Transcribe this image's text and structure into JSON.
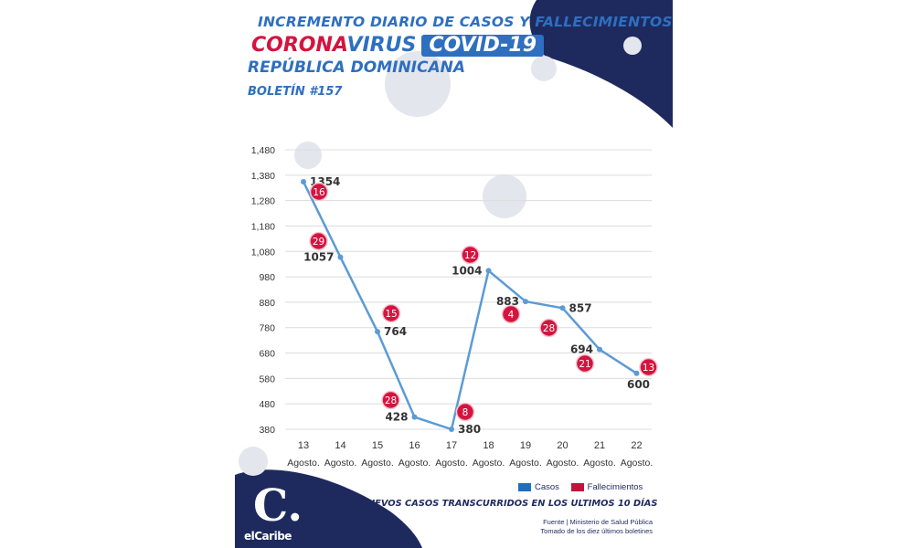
{
  "header": {
    "line1": "INCREMENTO DIARIO DE CASOS Y FALLECIMIENTOS",
    "corona": "CORONA",
    "virus": "VIRUS",
    "covid": "COVID-19",
    "country": "REPÚBLICA DOMINICANA",
    "bulletin": "BOLETÍN #157"
  },
  "chart_data": {
    "type": "line",
    "categories": [
      "13",
      "14",
      "15",
      "16",
      "17",
      "18",
      "19",
      "20",
      "21",
      "22"
    ],
    "category_sublabel": "Agosto.",
    "series": [
      {
        "name": "Casos",
        "values": [
          1354,
          1057,
          764,
          428,
          380,
          1004,
          883,
          857,
          694,
          600
        ],
        "color": "#5b9bd5"
      },
      {
        "name": "Fallecimientos",
        "values": [
          16,
          29,
          15,
          28,
          8,
          12,
          4,
          28,
          21,
          13
        ],
        "color": "#d4143f"
      }
    ],
    "yticks": [
      380,
      480,
      580,
      680,
      780,
      880,
      980,
      1080,
      1180,
      1280,
      1380,
      1480
    ],
    "ytick_labels": [
      "380",
      "480",
      "580",
      "680",
      "780",
      "880",
      "980",
      "1,080",
      "1,180",
      "1,280",
      "1,380",
      "1,480"
    ],
    "ylim": [
      380,
      1480
    ],
    "grid": true,
    "legend_position": "bottom-right"
  },
  "legend": {
    "casos": "Casos",
    "fallecimientos": "Fallecimientos"
  },
  "footer": {
    "subtitle": "NUEVOS CASOS TRANSCURRIDOS EN LOS ULTIMOS 10 DÍAS",
    "source_line1": "Fuente | Ministerio de Salud Pública",
    "source_line2": "Tomado de  los diez últimos boletines",
    "logo_letter": "C.",
    "logo_word": "elCaribe"
  },
  "colors": {
    "navy": "#1e2a5e",
    "blue": "#2e6fc0",
    "red": "#d4143f",
    "line": "#5b9bd5"
  }
}
